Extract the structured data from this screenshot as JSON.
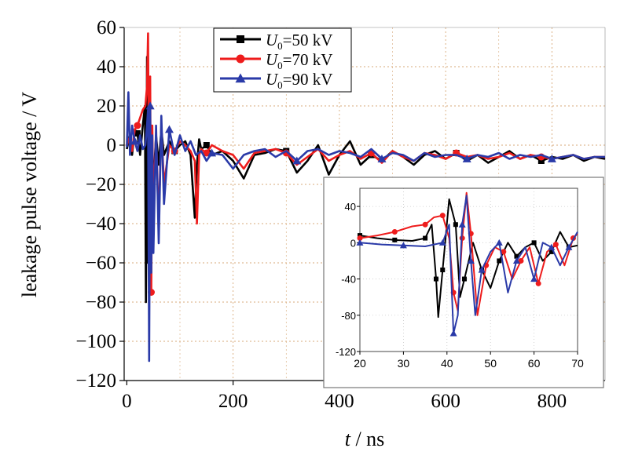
{
  "chart_data": [
    {
      "type": "line",
      "ylabel": "leakage pulse voltage / V",
      "xlabel": {
        "var": "t",
        "unit": " / ns"
      },
      "xlim": [
        -5,
        900
      ],
      "ylim": [
        -120,
        60
      ],
      "xticks": [
        0,
        200,
        400,
        600,
        800
      ],
      "yticks": [
        60,
        40,
        20,
        0,
        -20,
        -40,
        -60,
        -80,
        -100,
        -120
      ],
      "xtick_labels": [
        "0",
        "200",
        "400",
        "600",
        "800"
      ],
      "ytick_labels": [
        "60",
        "40",
        "20",
        "0",
        "−20",
        "−40",
        "−60",
        "−80",
        "−100",
        "−120"
      ],
      "grid": true,
      "legend_position": "top-center",
      "series": [
        {
          "legend_var": "U",
          "legend_sub": "0",
          "legend_rest": "=50 kV",
          "color": "#000000",
          "marker": "square",
          "x": [
            0,
            5,
            10,
            15,
            20,
            25,
            30,
            34,
            36,
            38,
            40,
            42,
            44,
            46,
            50,
            55,
            60,
            65,
            70,
            80,
            90,
            100,
            110,
            120,
            128,
            132,
            136,
            140,
            150,
            160,
            180,
            200,
            220,
            240,
            260,
            280,
            300,
            320,
            340,
            360,
            380,
            400,
            420,
            440,
            460,
            480,
            500,
            520,
            540,
            560,
            580,
            600,
            620,
            640,
            660,
            680,
            700,
            720,
            740,
            760,
            780,
            800,
            820,
            840,
            860,
            880,
            900
          ],
          "y": [
            -2,
            5,
            -5,
            8,
            6,
            -5,
            10,
            20,
            -80,
            45,
            -60,
            5,
            -40,
            10,
            -20,
            5,
            -10,
            8,
            -5,
            2,
            -3,
            0,
            2,
            -5,
            -37,
            -10,
            3,
            -2,
            0,
            -5,
            -3,
            -8,
            -17,
            -5,
            -4,
            -2,
            -3,
            -14,
            -8,
            0,
            -15,
            -5,
            2,
            -10,
            -5,
            -8,
            -3,
            -6,
            -10,
            -5,
            -3,
            -7,
            -4,
            -8,
            -5,
            -9,
            -6,
            -3,
            -7,
            -5,
            -8,
            -6,
            -7,
            -5,
            -8,
            -6,
            -7
          ]
        },
        {
          "legend_var": "U",
          "legend_sub": "0",
          "legend_rest": "=70 kV",
          "color": "#ee1c1c",
          "marker": "circle",
          "x": [
            0,
            5,
            10,
            15,
            20,
            25,
            30,
            35,
            38,
            40,
            42,
            44,
            46,
            48,
            50,
            55,
            60,
            65,
            70,
            80,
            90,
            100,
            110,
            120,
            128,
            132,
            136,
            140,
            150,
            160,
            180,
            200,
            220,
            240,
            260,
            280,
            300,
            320,
            340,
            360,
            380,
            400,
            420,
            440,
            460,
            480,
            500,
            520,
            540,
            560,
            580,
            600,
            620,
            640,
            660,
            680,
            700,
            720,
            740,
            760,
            780,
            800,
            820,
            840,
            860,
            880,
            900
          ],
          "y": [
            0,
            4,
            -3,
            8,
            10,
            14,
            18,
            20,
            30,
            57,
            -40,
            35,
            -75,
            10,
            -30,
            5,
            -40,
            10,
            -20,
            0,
            -3,
            2,
            0,
            -3,
            -8,
            -40,
            -5,
            -2,
            -4,
            0,
            -3,
            -5,
            -12,
            -4,
            -3,
            -2,
            -4,
            -10,
            -6,
            -2,
            -8,
            -5,
            -3,
            -7,
            -4,
            -9,
            -3,
            -6,
            -8,
            -4,
            -5,
            -7,
            -4,
            -6,
            -5,
            -7,
            -6,
            -4,
            -7,
            -5,
            -6,
            -7,
            -6,
            -5,
            -7,
            -6,
            -6
          ]
        },
        {
          "legend_var": "U",
          "legend_sub": "0",
          "legend_rest": "=90 kV",
          "color": "#2a3aa8",
          "marker": "triangle",
          "x": [
            0,
            3,
            6,
            10,
            15,
            20,
            25,
            30,
            35,
            38,
            40,
            42,
            44,
            46,
            48,
            50,
            55,
            60,
            65,
            70,
            80,
            90,
            100,
            110,
            120,
            130,
            140,
            150,
            160,
            180,
            200,
            220,
            240,
            260,
            280,
            300,
            320,
            340,
            360,
            380,
            400,
            420,
            440,
            460,
            480,
            500,
            520,
            540,
            560,
            580,
            600,
            620,
            640,
            660,
            680,
            700,
            720,
            740,
            760,
            780,
            800,
            820,
            840,
            860,
            880,
            900
          ],
          "y": [
            -1,
            27,
            -5,
            10,
            2,
            -3,
            5,
            -2,
            0,
            10,
            18,
            -110,
            20,
            -65,
            5,
            -55,
            10,
            -50,
            15,
            -30,
            8,
            -5,
            5,
            -3,
            2,
            -5,
            -3,
            -8,
            -4,
            -5,
            -12,
            -5,
            -3,
            -2,
            -6,
            -3,
            -8,
            -3,
            -2,
            -5,
            -3,
            -4,
            -6,
            -2,
            -7,
            -4,
            -5,
            -8,
            -4,
            -6,
            -5,
            -5,
            -7,
            -5,
            -6,
            -4,
            -7,
            -5,
            -6,
            -5,
            -7,
            -6,
            -5,
            -7,
            -6,
            -6
          ]
        }
      ]
    },
    {
      "type": "line",
      "xlim": [
        20,
        70
      ],
      "ylim": [
        -120,
        60
      ],
      "xticks": [
        20,
        30,
        40,
        50,
        60,
        70
      ],
      "yticks": [
        40,
        0,
        -40,
        -80,
        -120
      ],
      "xtick_labels": [
        "20",
        "30",
        "40",
        "50",
        "60",
        "70"
      ],
      "ytick_labels": [
        "40",
        "0",
        "-40",
        "-80",
        "-120"
      ],
      "series": [
        {
          "color": "#000000",
          "marker": "square",
          "x": [
            20,
            24,
            28,
            32,
            35,
            36.5,
            37.5,
            38,
            39,
            40.5,
            42,
            43,
            44,
            46,
            48,
            50,
            52,
            54,
            56,
            58,
            60,
            62,
            64,
            66,
            68,
            70
          ],
          "y": [
            8,
            5,
            3,
            2,
            5,
            20,
            -40,
            -82,
            -30,
            48,
            20,
            -60,
            -40,
            0,
            -30,
            -50,
            -20,
            0,
            -15,
            -5,
            0,
            -20,
            -10,
            12,
            -5,
            -3
          ]
        },
        {
          "color": "#ee1c1c",
          "marker": "circle",
          "x": [
            20,
            24,
            28,
            32,
            35,
            37,
            39,
            40.5,
            41.5,
            42.5,
            43.5,
            44.5,
            45.5,
            47,
            49,
            51,
            53,
            55,
            57,
            59,
            61,
            63,
            65,
            67,
            69,
            70
          ],
          "y": [
            5,
            8,
            12,
            18,
            20,
            28,
            30,
            5,
            -55,
            -75,
            5,
            55,
            10,
            -80,
            -25,
            -5,
            -10,
            -40,
            -20,
            -5,
            -45,
            -10,
            -2,
            -25,
            5,
            10
          ]
        },
        {
          "color": "#2a3aa8",
          "marker": "triangle",
          "x": [
            20,
            25,
            30,
            35,
            39,
            40.5,
            41.5,
            42.5,
            43.5,
            44.5,
            45.5,
            46.5,
            48,
            50,
            52,
            54,
            56,
            58,
            60,
            62,
            64,
            66,
            68,
            70
          ],
          "y": [
            0,
            -2,
            -3,
            -4,
            0,
            20,
            -100,
            -80,
            20,
            52,
            -20,
            -80,
            -30,
            -10,
            0,
            -55,
            -20,
            -5,
            -40,
            0,
            -5,
            -25,
            -5,
            12
          ]
        }
      ]
    }
  ]
}
